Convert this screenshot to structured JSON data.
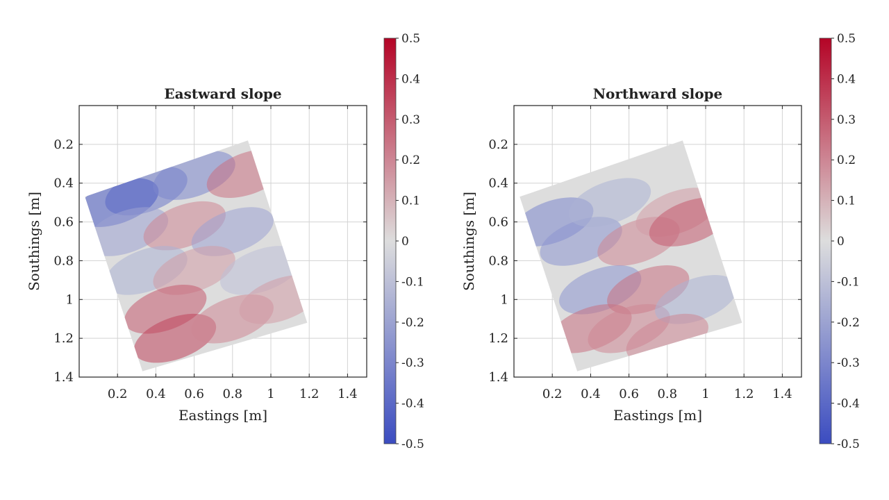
{
  "figure": {
    "colormap": {
      "low": "#3b4cc0",
      "mid": "#dddddd",
      "high": "#b40426"
    }
  },
  "chart_data": [
    {
      "type": "heatmap",
      "title": "Eastward slope",
      "xlabel": "Eastings [m]",
      "ylabel": "Southings [m]",
      "xlim": [
        0.0,
        1.5
      ],
      "ylim": [
        0.0,
        1.4
      ],
      "y_reversed": true,
      "grid": true,
      "x_ticks": [
        0.2,
        0.4,
        0.6,
        0.8,
        1,
        1.2,
        1.4
      ],
      "y_ticks": [
        0.2,
        0.4,
        0.6,
        0.8,
        1,
        1.2,
        1.4
      ],
      "colorbar": {
        "min": -0.5,
        "max": 0.5,
        "ticks": [
          0.5,
          0.4,
          0.3,
          0.2,
          0.1,
          0,
          -0.1,
          -0.2,
          -0.3,
          -0.4,
          -0.5
        ]
      },
      "footprint_corners": [
        [
          0.03,
          0.47
        ],
        [
          0.88,
          0.18
        ],
        [
          1.19,
          1.12
        ],
        [
          0.33,
          1.37
        ]
      ],
      "features": [
        {
          "x": 0.35,
          "y": 0.44,
          "value": -0.35
        },
        {
          "x": 0.2,
          "y": 0.5,
          "value": -0.45
        },
        {
          "x": 0.6,
          "y": 0.36,
          "value": -0.3
        },
        {
          "x": 0.88,
          "y": 0.35,
          "value": 0.25
        },
        {
          "x": 0.25,
          "y": 0.65,
          "value": -0.2
        },
        {
          "x": 0.55,
          "y": 0.62,
          "value": 0.2
        },
        {
          "x": 0.8,
          "y": 0.65,
          "value": -0.2
        },
        {
          "x": 0.35,
          "y": 0.85,
          "value": -0.15
        },
        {
          "x": 0.6,
          "y": 0.85,
          "value": 0.15
        },
        {
          "x": 0.95,
          "y": 0.85,
          "value": -0.1
        },
        {
          "x": 0.45,
          "y": 1.05,
          "value": 0.3
        },
        {
          "x": 0.5,
          "y": 1.2,
          "value": 0.35
        },
        {
          "x": 0.8,
          "y": 1.1,
          "value": 0.2
        },
        {
          "x": 1.05,
          "y": 1.0,
          "value": 0.15
        }
      ]
    },
    {
      "type": "heatmap",
      "title": "Northward slope",
      "xlabel": "Eastings [m]",
      "ylabel": "Southings [m]",
      "xlim": [
        0.0,
        1.5
      ],
      "ylim": [
        0.0,
        1.4
      ],
      "y_reversed": true,
      "grid": true,
      "x_ticks": [
        0.2,
        0.4,
        0.6,
        0.8,
        1,
        1.2,
        1.4
      ],
      "y_ticks": [
        0.2,
        0.4,
        0.6,
        0.8,
        1,
        1.2,
        1.4
      ],
      "colorbar": {
        "min": -0.5,
        "max": 0.5,
        "ticks": [
          0.5,
          0.4,
          0.3,
          0.2,
          0.1,
          0,
          -0.1,
          -0.2,
          -0.3,
          -0.4,
          -0.5
        ]
      },
      "footprint_corners": [
        [
          0.03,
          0.47
        ],
        [
          0.88,
          0.18
        ],
        [
          1.19,
          1.12
        ],
        [
          0.33,
          1.37
        ]
      ],
      "features": [
        {
          "x": 0.2,
          "y": 0.6,
          "value": -0.3
        },
        {
          "x": 0.35,
          "y": 0.7,
          "value": -0.25
        },
        {
          "x": 0.5,
          "y": 0.5,
          "value": -0.15
        },
        {
          "x": 0.65,
          "y": 0.7,
          "value": 0.2
        },
        {
          "x": 0.85,
          "y": 0.55,
          "value": 0.15
        },
        {
          "x": 0.92,
          "y": 0.6,
          "value": 0.3
        },
        {
          "x": 0.45,
          "y": 0.95,
          "value": -0.25
        },
        {
          "x": 0.7,
          "y": 0.95,
          "value": 0.25
        },
        {
          "x": 0.4,
          "y": 1.15,
          "value": 0.25
        },
        {
          "x": 0.6,
          "y": 1.15,
          "value": 0.2
        },
        {
          "x": 0.95,
          "y": 1.0,
          "value": -0.15
        },
        {
          "x": 0.8,
          "y": 1.2,
          "value": 0.2
        }
      ]
    }
  ]
}
